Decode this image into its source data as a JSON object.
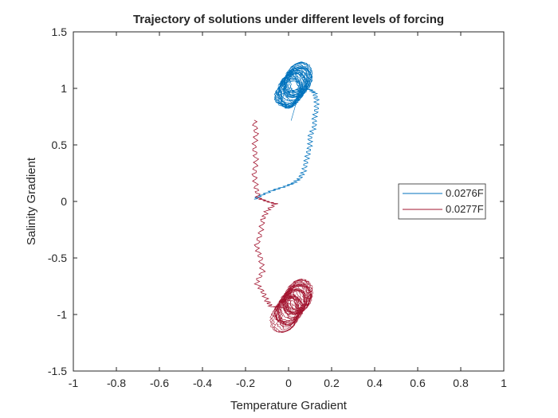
{
  "chart_data": {
    "type": "line",
    "title": "Trajectory of solutions under different levels of forcing",
    "xlabel": "Temperature Gradient",
    "ylabel": "Salinity Gradient",
    "xlim": [
      -1,
      1
    ],
    "ylim": [
      -1.5,
      1.5
    ],
    "xticks": [
      -1,
      -0.8,
      -0.6,
      -0.4,
      -0.2,
      0,
      0.2,
      0.4,
      0.6,
      0.8,
      1
    ],
    "xtick_labels": [
      "-1",
      "-0.8",
      "-0.6",
      "-0.4",
      "-0.2",
      "0",
      "0.2",
      "0.4",
      "0.6",
      "0.8",
      "1"
    ],
    "yticks": [
      -1.5,
      -1,
      -0.5,
      0,
      0.5,
      1,
      1.5
    ],
    "ytick_labels": [
      "-1.5",
      "-1",
      "-0.5",
      "0",
      "0.5",
      "1",
      "1.5"
    ],
    "grid": false,
    "legend_position": "right",
    "series": [
      {
        "name": "0.0276F",
        "color": "#0072BD",
        "transient": [
          [
            -0.16,
            0.02
          ],
          [
            -0.12,
            0.06
          ],
          [
            -0.07,
            0.1
          ],
          [
            -0.02,
            0.13
          ],
          [
            0.02,
            0.16
          ],
          [
            0.05,
            0.2
          ],
          [
            0.07,
            0.26
          ],
          [
            0.08,
            0.34
          ],
          [
            0.09,
            0.42
          ],
          [
            0.1,
            0.5
          ],
          [
            0.1,
            0.58
          ],
          [
            0.12,
            0.66
          ],
          [
            0.12,
            0.74
          ],
          [
            0.13,
            0.82
          ],
          [
            0.13,
            0.9
          ],
          [
            0.12,
            0.96
          ],
          [
            0.1,
            0.99
          ],
          [
            0.06,
            1.0
          ],
          [
            0.02,
            0.98
          ],
          [
            -0.02,
            0.95
          ]
        ],
        "attractor": {
          "x_range": [
            -0.12,
            0.11
          ],
          "y_range": [
            0.65,
            1.25
          ],
          "center": [
            0.0,
            0.96
          ],
          "lobe_low": [
            -0.06,
            0.12
          ],
          "lobe_high": [
            0.08,
            1.12
          ]
        }
      },
      {
        "name": "0.0277F",
        "color": "#A2142F",
        "transient": [
          [
            -0.16,
            0.72
          ],
          [
            -0.15,
            0.6
          ],
          [
            -0.16,
            0.48
          ],
          [
            -0.15,
            0.36
          ],
          [
            -0.16,
            0.24
          ],
          [
            -0.15,
            0.12
          ],
          [
            -0.14,
            0.03
          ],
          [
            -0.1,
            0.0
          ],
          [
            -0.06,
            -0.02
          ],
          [
            -0.1,
            -0.08
          ],
          [
            -0.12,
            -0.16
          ],
          [
            -0.13,
            -0.28
          ],
          [
            -0.15,
            -0.4
          ],
          [
            -0.13,
            -0.5
          ],
          [
            -0.12,
            -0.62
          ],
          [
            -0.15,
            -0.72
          ],
          [
            -0.12,
            -0.8
          ],
          [
            -0.1,
            -0.88
          ],
          [
            -0.08,
            -0.93
          ],
          [
            -0.02,
            -0.94
          ]
        ],
        "attractor": {
          "x_range": [
            -0.11,
            0.12
          ],
          "y_range": [
            -1.25,
            -0.65
          ],
          "center": [
            0.0,
            -0.96
          ],
          "lobe_low": [
            -0.06,
            -1.12
          ],
          "lobe_high": [
            0.08,
            -0.8
          ]
        }
      }
    ]
  }
}
